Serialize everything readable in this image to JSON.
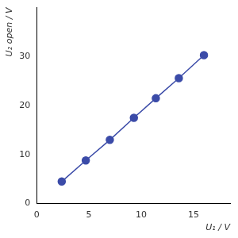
{
  "chart_data": {
    "type": "scatter",
    "x_label": "U₁ / V",
    "y_label": "U₂ open / V",
    "x": [
      2.4,
      4.7,
      7.0,
      9.3,
      11.4,
      13.6,
      16.0
    ],
    "values": [
      4.5,
      8.8,
      13.0,
      17.5,
      21.5,
      25.6,
      30.3
    ],
    "color": "#3b4ba8",
    "marker": "circle",
    "line_style": "solid",
    "xlim": [
      0,
      18.5
    ],
    "xticks": [
      0,
      5,
      10,
      15
    ],
    "ylim": [
      0,
      40
    ],
    "yticks": [
      0,
      10,
      20,
      30
    ],
    "grid": false
  }
}
